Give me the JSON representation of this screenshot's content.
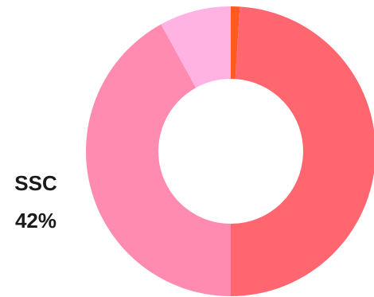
{
  "chart_data": {
    "type": "pie",
    "donut": true,
    "slices": [
      {
        "label": "",
        "value": 1,
        "color": "#ff5a1f"
      },
      {
        "label": "",
        "value": 49,
        "color": "#ff6670"
      },
      {
        "label": "SSC",
        "value": 42,
        "color": "#ff8bb0",
        "percent_label": "42%"
      },
      {
        "label": "",
        "value": 8,
        "color": "#ffb3e3"
      }
    ]
  },
  "callout": {
    "name": "SSC",
    "percent": "42%"
  }
}
